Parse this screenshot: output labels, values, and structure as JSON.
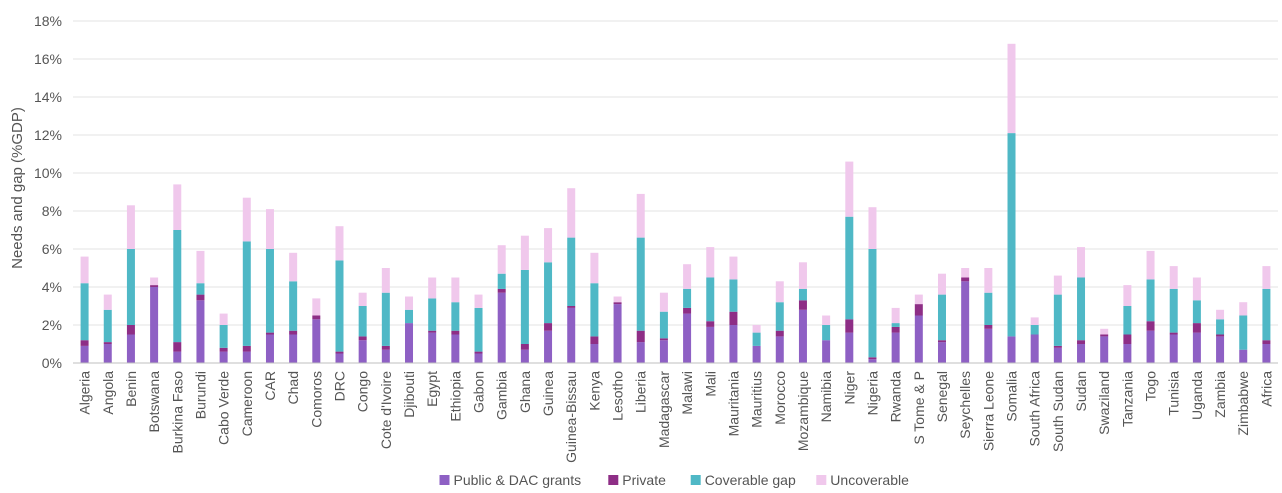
{
  "chart_data": {
    "type": "bar",
    "stacked": true,
    "title": "",
    "xlabel": "",
    "ylabel": "Needs and gap (%GDP)",
    "ylim": [
      0,
      18
    ],
    "yticks": [
      "0%",
      "2%",
      "4%",
      "6%",
      "8%",
      "10%",
      "12%",
      "14%",
      "16%",
      "18%"
    ],
    "grid": true,
    "legend_position": "bottom",
    "categories": [
      "Algeria",
      "Angola",
      "Benin",
      "Botswana",
      "Burkina Faso",
      "Burundi",
      "Cabo Verde",
      "Cameroon",
      "CAR",
      "Chad",
      "Comoros",
      "DRC",
      "Congo",
      "Cote d'Ivoire",
      "Djibouti",
      "Egypt",
      "Ethiopia",
      "Gabon",
      "Gambia",
      "Ghana",
      "Guinea",
      "Guinea-Bissau",
      "Kenya",
      "Lesotho",
      "Liberia",
      "Madagascar",
      "Malawi",
      "Mali",
      "Mauritania",
      "Mauritius",
      "Morocco",
      "Mozambique",
      "Namibia",
      "Niger",
      "Nigeria",
      "Rwanda",
      "S Tome & P",
      "Senegal",
      "Seychelles",
      "Sierra Leone",
      "Somalia",
      "South Africa",
      "South Sudan",
      "Sudan",
      "Swaziland",
      "Tanzania",
      "Togo",
      "Tunisia",
      "Uganda",
      "Zambia",
      "Zimbabwe",
      "Africa"
    ],
    "series": [
      {
        "name": "Public & DAC grants",
        "color": "#8e60c4",
        "values": [
          0.9,
          1.0,
          1.5,
          4.0,
          0.6,
          3.3,
          0.6,
          0.6,
          1.5,
          1.5,
          2.3,
          0.5,
          1.2,
          0.7,
          2.1,
          1.6,
          1.5,
          0.5,
          3.7,
          0.7,
          1.7,
          2.9,
          1.0,
          3.1,
          1.1,
          1.2,
          2.6,
          1.9,
          2.0,
          0.9,
          1.4,
          2.8,
          1.2,
          1.6,
          0.2,
          1.6,
          2.5,
          1.1,
          4.3,
          1.8,
          1.4,
          1.5,
          0.8,
          1.0,
          1.4,
          1.0,
          1.7,
          1.5,
          1.6,
          1.4,
          0.7,
          1.0
        ]
      },
      {
        "name": "Private",
        "color": "#8e2e86",
        "values": [
          0.3,
          0.1,
          0.5,
          0.1,
          0.5,
          0.3,
          0.2,
          0.3,
          0.1,
          0.2,
          0.2,
          0.1,
          0.2,
          0.2,
          0.0,
          0.1,
          0.2,
          0.1,
          0.2,
          0.3,
          0.4,
          0.1,
          0.4,
          0.1,
          0.6,
          0.1,
          0.3,
          0.3,
          0.7,
          0.0,
          0.3,
          0.5,
          0.0,
          0.7,
          0.1,
          0.3,
          0.6,
          0.1,
          0.2,
          0.2,
          0.0,
          0.0,
          0.1,
          0.2,
          0.1,
          0.5,
          0.5,
          0.1,
          0.5,
          0.1,
          0.0,
          0.2
        ]
      },
      {
        "name": "Coverable gap",
        "color": "#4fb8c6",
        "values": [
          3.0,
          1.7,
          4.0,
          0.0,
          5.9,
          0.6,
          1.2,
          5.5,
          4.4,
          2.6,
          0.0,
          4.8,
          1.6,
          2.8,
          0.7,
          1.7,
          1.5,
          2.3,
          0.8,
          3.9,
          3.2,
          3.6,
          2.8,
          0.0,
          4.9,
          1.4,
          1.0,
          2.3,
          1.7,
          0.7,
          1.5,
          0.6,
          0.8,
          5.4,
          5.7,
          0.2,
          0.0,
          2.4,
          0.0,
          1.7,
          10.7,
          0.5,
          2.7,
          3.3,
          0.0,
          1.5,
          2.2,
          2.3,
          1.2,
          0.8,
          1.8,
          2.7
        ]
      },
      {
        "name": "Uncoverable",
        "color": "#f0c8ec",
        "values": [
          1.4,
          0.8,
          2.3,
          0.4,
          2.4,
          1.7,
          0.6,
          2.3,
          2.1,
          1.5,
          0.9,
          1.8,
          0.7,
          1.3,
          0.7,
          1.1,
          1.3,
          0.7,
          1.5,
          1.8,
          1.8,
          2.6,
          1.6,
          0.3,
          2.3,
          1.0,
          1.3,
          1.6,
          1.2,
          0.4,
          1.1,
          1.4,
          0.5,
          2.9,
          2.2,
          0.8,
          0.5,
          1.1,
          0.5,
          1.3,
          4.7,
          0.4,
          1.0,
          1.6,
          0.3,
          1.1,
          1.5,
          1.2,
          1.2,
          0.5,
          0.7,
          1.2
        ]
      }
    ]
  }
}
